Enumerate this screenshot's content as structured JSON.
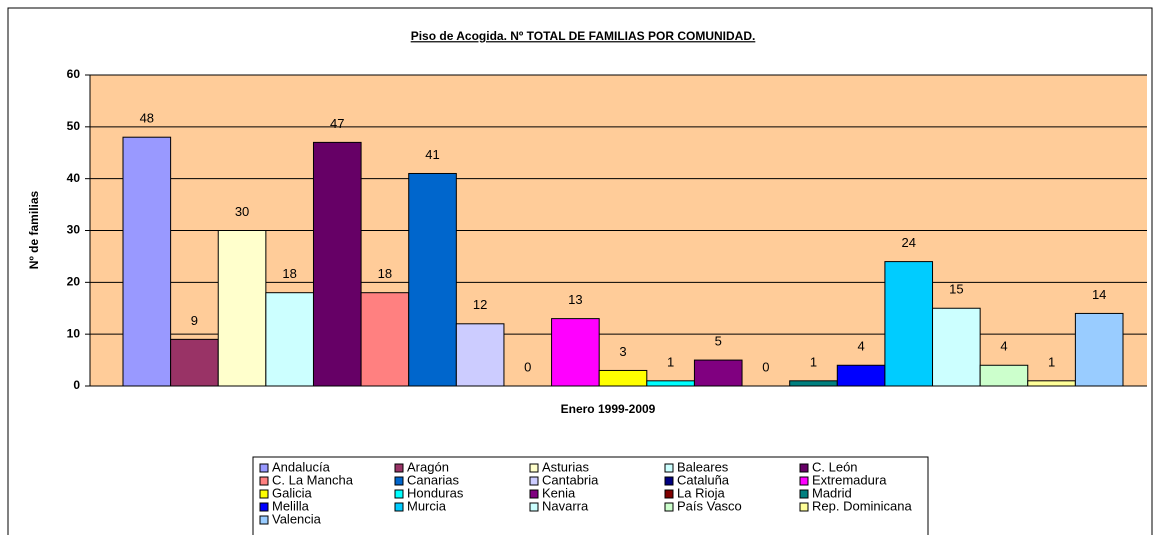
{
  "chart_data": {
    "type": "bar",
    "title": "Piso de Acogida. Nº TOTAL DE FAMILIAS POR COMUNIDAD.",
    "y_label": "Nº de familias",
    "categories": [
      "Enero 1999-2009"
    ],
    "ylim": [
      0,
      60
    ],
    "yticks": [
      0,
      10,
      20,
      30,
      40,
      50,
      60
    ],
    "grid": true,
    "series": [
      {
        "name": "Andalucía",
        "color": "#9999ff",
        "values": [
          48
        ]
      },
      {
        "name": "Aragón",
        "color": "#993366",
        "values": [
          9
        ]
      },
      {
        "name": "Asturias",
        "color": "#ffffcc",
        "values": [
          30
        ]
      },
      {
        "name": "Baleares",
        "color": "#ccffff",
        "values": [
          18
        ]
      },
      {
        "name": "C. León",
        "color": "#660066",
        "values": [
          47
        ]
      },
      {
        "name": "C. La Mancha",
        "color": "#ff8080",
        "values": [
          18
        ]
      },
      {
        "name": "Canarias",
        "color": "#0066cc",
        "values": [
          41
        ]
      },
      {
        "name": "Cantabria",
        "color": "#ccccff",
        "values": [
          12
        ]
      },
      {
        "name": "Cataluña",
        "color": "#000080",
        "values": [
          0
        ]
      },
      {
        "name": "Extremadura",
        "color": "#ff00ff",
        "values": [
          13
        ]
      },
      {
        "name": "Galicia",
        "color": "#ffff00",
        "values": [
          3
        ]
      },
      {
        "name": "Honduras",
        "color": "#00ffff",
        "values": [
          1
        ]
      },
      {
        "name": "Kenia",
        "color": "#800080",
        "values": [
          5
        ]
      },
      {
        "name": "La Rioja",
        "color": "#800000",
        "values": [
          0
        ]
      },
      {
        "name": "Madrid",
        "color": "#008080",
        "values": [
          1
        ]
      },
      {
        "name": "Melilla",
        "color": "#0000ff",
        "values": [
          4
        ]
      },
      {
        "name": "Murcia",
        "color": "#00ccff",
        "values": [
          24
        ]
      },
      {
        "name": "Navarra",
        "color": "#ccffff",
        "values": [
          15
        ]
      },
      {
        "name": "País Vasco",
        "color": "#ccffcc",
        "values": [
          4
        ]
      },
      {
        "name": "Rep. Dominicana",
        "color": "#ffff99",
        "values": [
          1
        ]
      },
      {
        "name": "Valencia",
        "color": "#99ccff",
        "values": [
          14
        ]
      }
    ]
  }
}
